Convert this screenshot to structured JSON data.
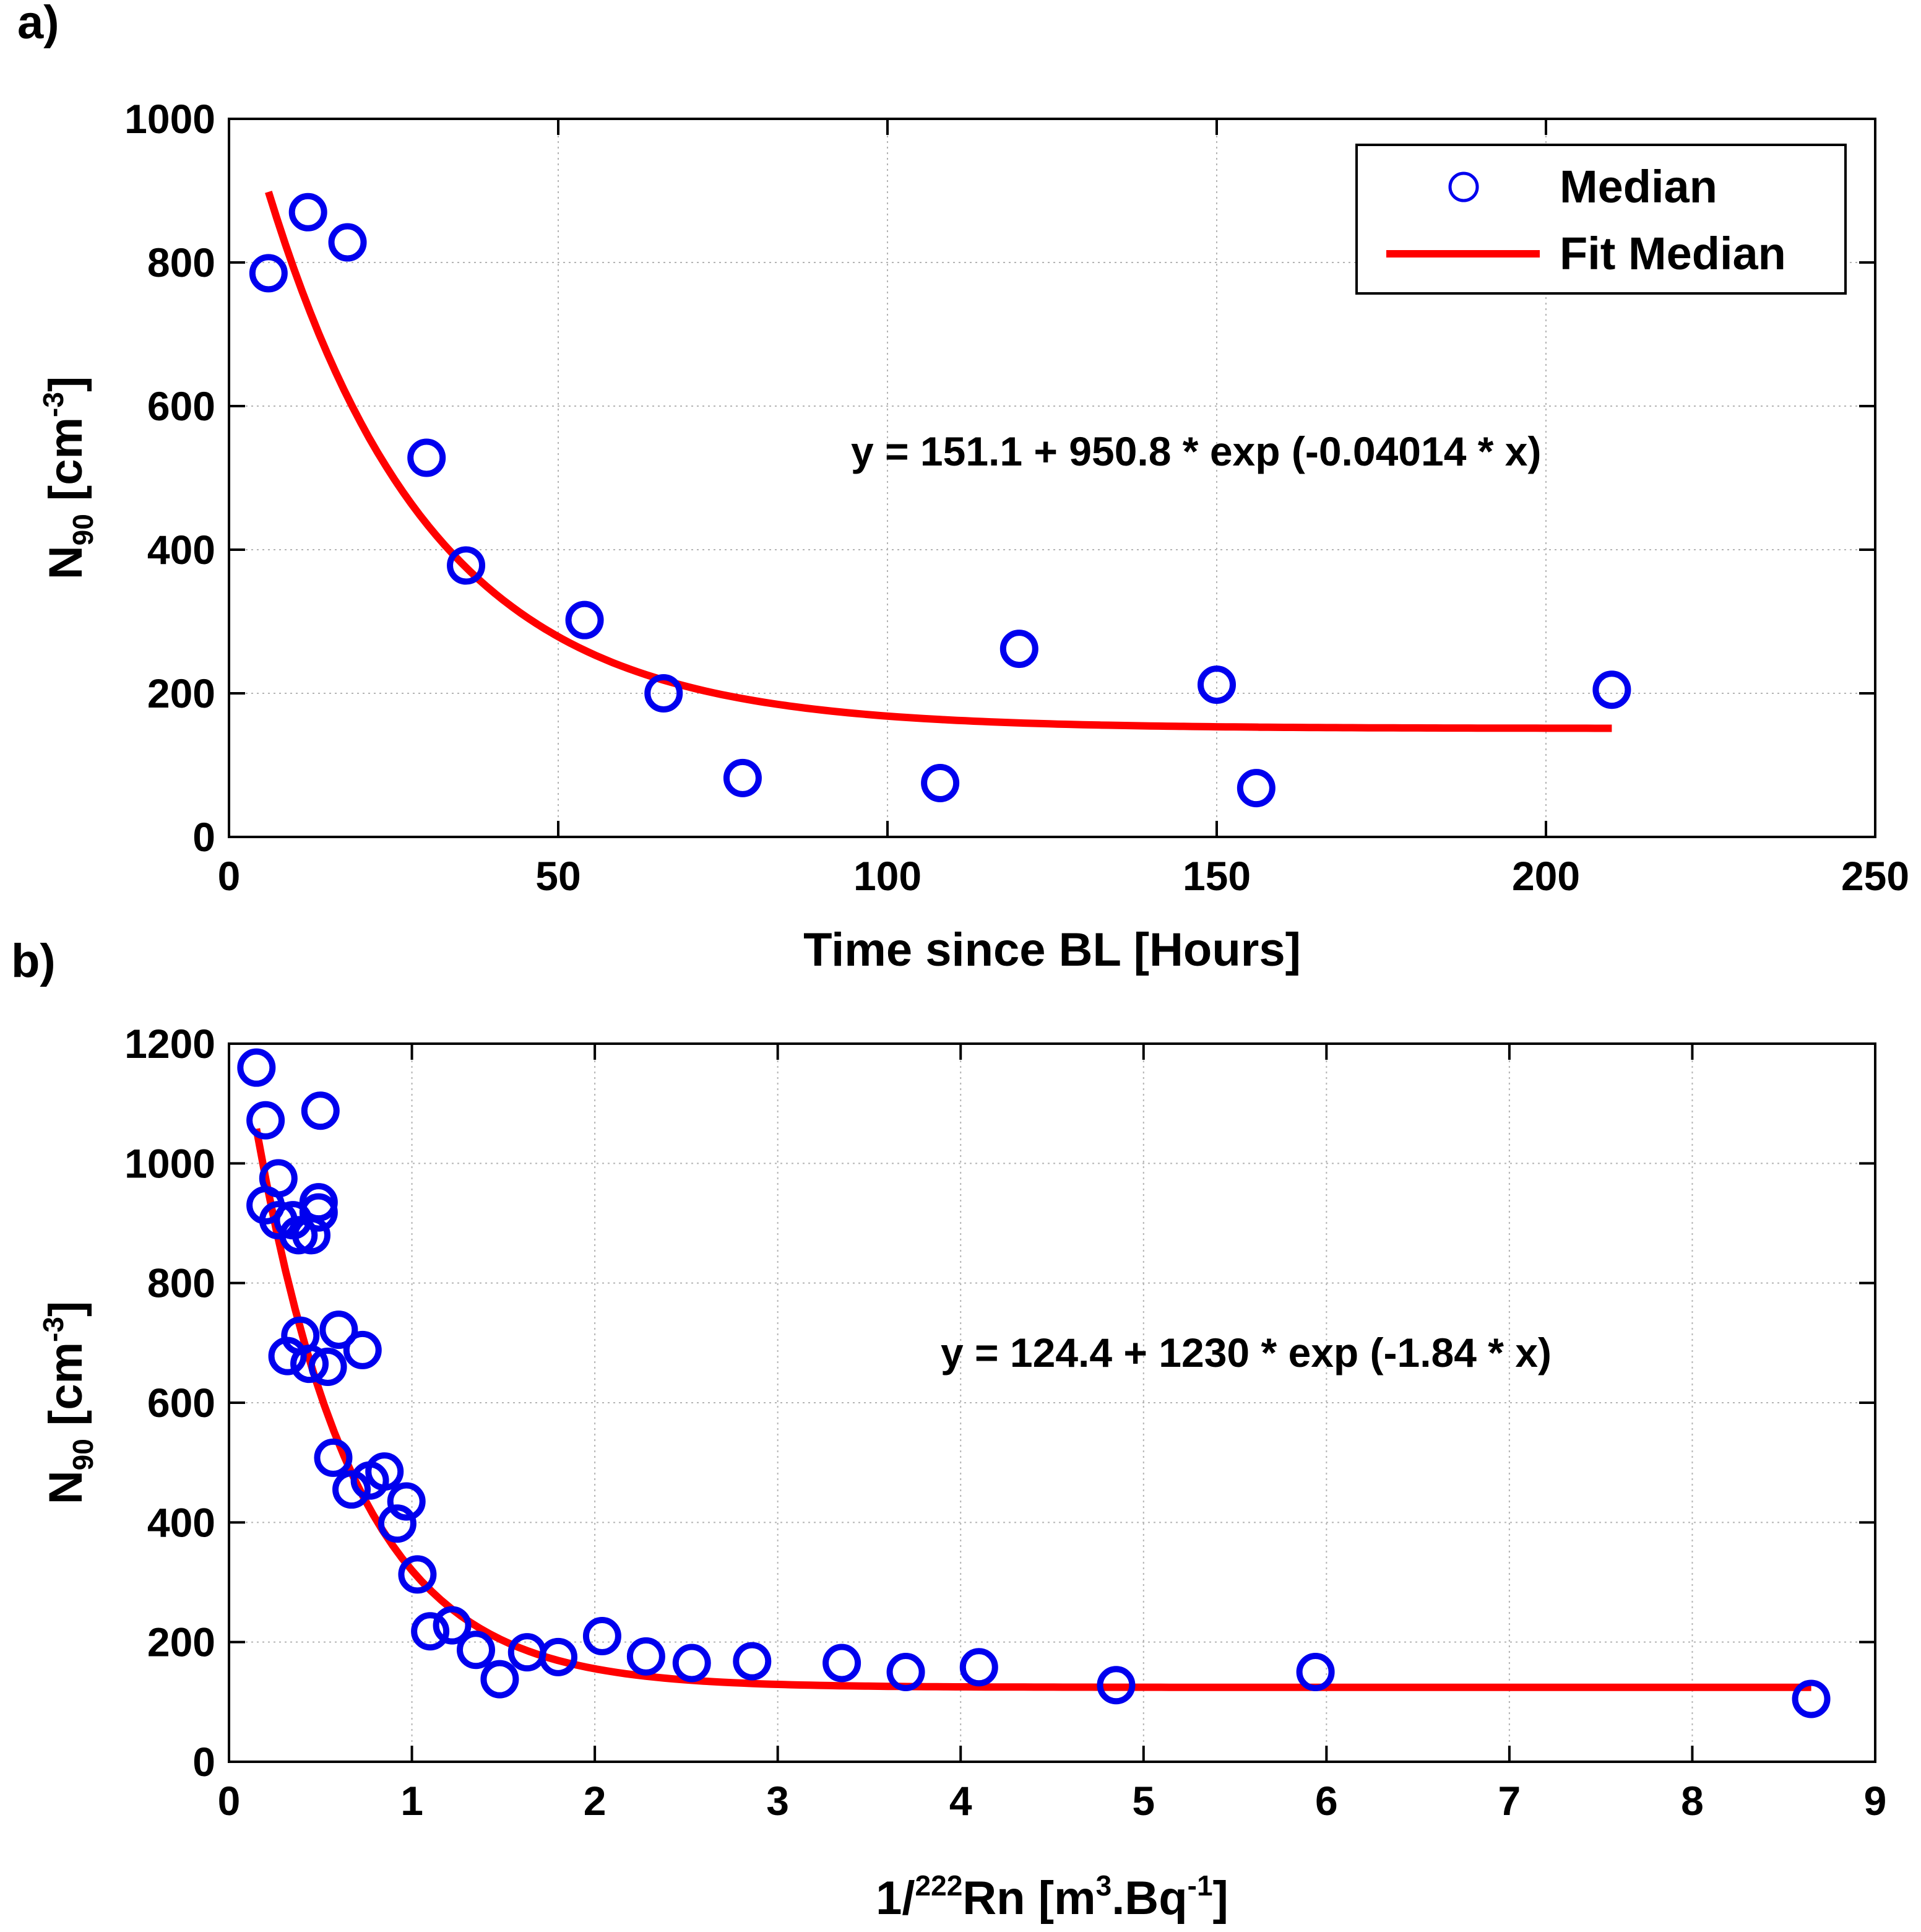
{
  "colors": {
    "marker": "#0000ee",
    "fit": "#ff0000",
    "grid": "#b4b4b4",
    "axis": "#000000"
  },
  "chart_data": [
    {
      "id": "a",
      "panel_label": "a)",
      "type": "scatter",
      "xlabel": "Time since BL [Hours]",
      "ylabel": {
        "main": "N",
        "sub": "90",
        "unit_prefix": " [cm",
        "sup": "-3",
        "unit_suffix": "]"
      },
      "xlim": [
        0,
        250
      ],
      "ylim": [
        0,
        1000
      ],
      "xticks": [
        0,
        50,
        100,
        150,
        200,
        250
      ],
      "yticks": [
        0,
        200,
        400,
        600,
        800,
        1000
      ],
      "grid": true,
      "equation": "y = 151.1 + 950.8 * exp (-0.04014 * x)",
      "legend": {
        "position": "top-right",
        "entries": [
          "Median",
          "Fit Median"
        ]
      },
      "series": [
        {
          "name": "Median",
          "kind": "markers",
          "points": [
            [
              6,
              785
            ],
            [
              12,
              870
            ],
            [
              18,
              828
            ],
            [
              30,
              528
            ],
            [
              36,
              378
            ],
            [
              54,
              302
            ],
            [
              66,
              200
            ],
            [
              78,
              82
            ],
            [
              108,
              75
            ],
            [
              120,
              262
            ],
            [
              150,
              212
            ],
            [
              156,
              68
            ],
            [
              210,
              205
            ]
          ]
        },
        {
          "name": "Fit Median",
          "kind": "fit",
          "model": {
            "a": 151.1,
            "b": 950.8,
            "c": -0.04014
          },
          "x_range": [
            6,
            210
          ]
        }
      ]
    },
    {
      "id": "b",
      "panel_label": "b)",
      "type": "scatter",
      "xlabel": {
        "prefix": "1/",
        "sup": "222",
        "main": "Rn [m",
        "sup2": "3",
        "mid": ".Bq",
        "sup3": "-1",
        "suffix": "]"
      },
      "ylabel": {
        "main": "N",
        "sub": "90",
        "unit_prefix": " [cm",
        "sup": "-3",
        "unit_suffix": "]"
      },
      "xlim": [
        0,
        9
      ],
      "ylim": [
        0,
        1200
      ],
      "xticks": [
        0,
        1,
        2,
        3,
        4,
        5,
        6,
        7,
        8,
        9
      ],
      "yticks": [
        0,
        200,
        400,
        600,
        800,
        1000,
        1200
      ],
      "grid": true,
      "equation": "y = 124.4 + 1230 * exp (-1.84 * x)",
      "series": [
        {
          "name": "Median",
          "kind": "markers",
          "points": [
            [
              0.15,
              1160
            ],
            [
              0.2,
              1072
            ],
            [
              0.2,
              930
            ],
            [
              0.27,
              975
            ],
            [
              0.27,
              905
            ],
            [
              0.35,
              905
            ],
            [
              0.38,
              880
            ],
            [
              0.45,
              880
            ],
            [
              0.49,
              935
            ],
            [
              0.49,
              918
            ],
            [
              0.5,
              1088
            ],
            [
              0.32,
              678
            ],
            [
              0.39,
              712
            ],
            [
              0.44,
              665
            ],
            [
              0.54,
              660
            ],
            [
              0.6,
              722
            ],
            [
              0.73,
              688
            ],
            [
              0.57,
              508
            ],
            [
              0.67,
              455
            ],
            [
              0.77,
              470
            ],
            [
              0.85,
              485
            ],
            [
              0.92,
              398
            ],
            [
              0.97,
              435
            ],
            [
              1.03,
              313
            ],
            [
              1.1,
              218
            ],
            [
              1.22,
              228
            ],
            [
              1.35,
              187
            ],
            [
              1.48,
              138
            ],
            [
              1.63,
              183
            ],
            [
              1.8,
              175
            ],
            [
              2.04,
              210
            ],
            [
              2.28,
              176
            ],
            [
              2.53,
              165
            ],
            [
              2.86,
              168
            ],
            [
              3.35,
              165
            ],
            [
              3.7,
              150
            ],
            [
              4.1,
              158
            ],
            [
              4.85,
              128
            ],
            [
              5.94,
              150
            ],
            [
              8.65,
              105
            ]
          ]
        },
        {
          "name": "Fit Median",
          "kind": "fit",
          "model": {
            "a": 124.4,
            "b": 1230,
            "c": -1.84
          },
          "x_range": [
            0.15,
            8.65
          ]
        }
      ]
    }
  ]
}
